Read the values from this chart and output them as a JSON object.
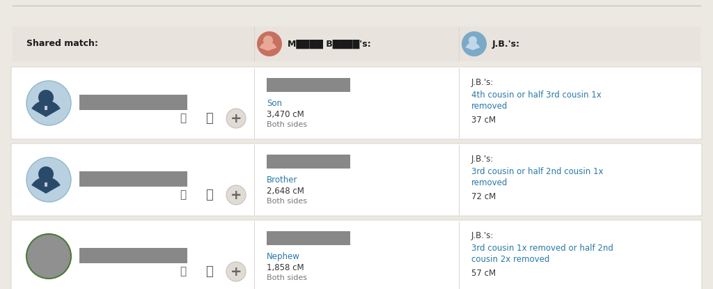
{
  "bg_color": "#ece8e2",
  "card_bg": "#ffffff",
  "header_bg": "#e8e3dc",
  "header_text_color": "#1a1a1a",
  "col1_header": "Shared match:",
  "col2_header": "M████ B████'s:",
  "col3_header": "J.B.'s:",
  "rows": [
    {
      "mb_relation": "Son",
      "mb_cm": "3,470 cM",
      "mb_sides": "Both sides",
      "jb_label": "J.B.'s:",
      "jb_relation": "4th cousin or half 3rd cousin 1x removed",
      "jb_cm": "37 cM",
      "avatar_type": "male_blue"
    },
    {
      "mb_relation": "Brother",
      "mb_cm": "2,648 cM",
      "mb_sides": "Both sides",
      "jb_label": "J.B.'s:",
      "jb_relation": "3rd cousin or half 2nd cousin 1x removed",
      "jb_cm": "72 cM",
      "avatar_type": "male_blue"
    },
    {
      "mb_relation": "Nephew",
      "mb_cm": "1,858 cM",
      "mb_sides": "Both sides",
      "jb_label": "J.B.'s:",
      "jb_relation": "3rd cousin 1x removed or half 2nd cousin 2x removed",
      "jb_cm": "57 cM",
      "avatar_type": "male_gray"
    }
  ],
  "relation_color": "#2878a8",
  "text_color": "#333333",
  "gray_text_color": "#777777",
  "mb_header_icon_color": "#c87060",
  "jb_header_icon_color": "#7aaac8",
  "avatar_blue_bg": "#b8d0e0",
  "avatar_blue_border": "#90b8cc",
  "avatar_blue_person": "#2a4a6a",
  "avatar_gray_bg": "#909090",
  "avatar_gray_border": "#4a7a3a",
  "avatar_gray_person": "#505050",
  "name_bar_color": "#888888",
  "icon_color": "#555555",
  "icon_circle_bg": "#e0dbd4",
  "icon_circle_border": "#c8c0b8",
  "divider_color": "#d8d4ce"
}
